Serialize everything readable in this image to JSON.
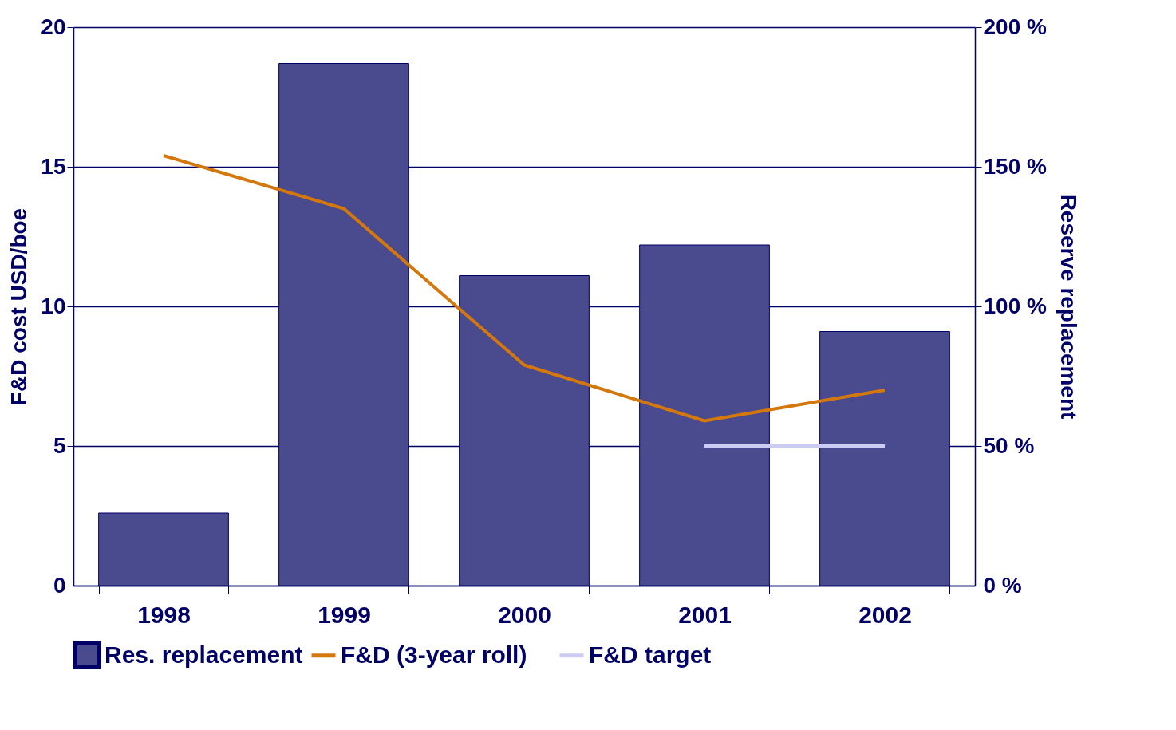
{
  "chart_data": {
    "type": "bar",
    "categories": [
      "1998",
      "1999",
      "2000",
      "2001",
      "2002"
    ],
    "ylabel": "F&D cost USD/boe",
    "y2label": "Reserve replacement",
    "ylim": [
      0,
      20
    ],
    "yticks": [
      0,
      5,
      10,
      15,
      20
    ],
    "y2lim": [
      0,
      200
    ],
    "y2ticks": [
      {
        "value": 0,
        "label": "0 %"
      },
      {
        "value": 50,
        "label": "50 %"
      },
      {
        "value": 100,
        "label": "100 %"
      },
      {
        "value": 150,
        "label": "150 %"
      },
      {
        "value": 200,
        "label": "200 %"
      }
    ],
    "grid": "y",
    "legend": "bottom",
    "series": [
      {
        "name": "Res. replacement",
        "axis": "y2",
        "color": "#4a4a8e",
        "values": [
          26,
          187,
          111,
          122,
          91
        ]
      },
      {
        "name": "F&D (3-year roll)",
        "type": "line",
        "color": "#d4780e",
        "values": [
          15.4,
          13.5,
          7.9,
          5.9,
          7.0
        ]
      },
      {
        "name": "F&D target",
        "type": "line",
        "color": "#ccccf2",
        "values": [
          null,
          null,
          null,
          5,
          5
        ]
      }
    ]
  }
}
